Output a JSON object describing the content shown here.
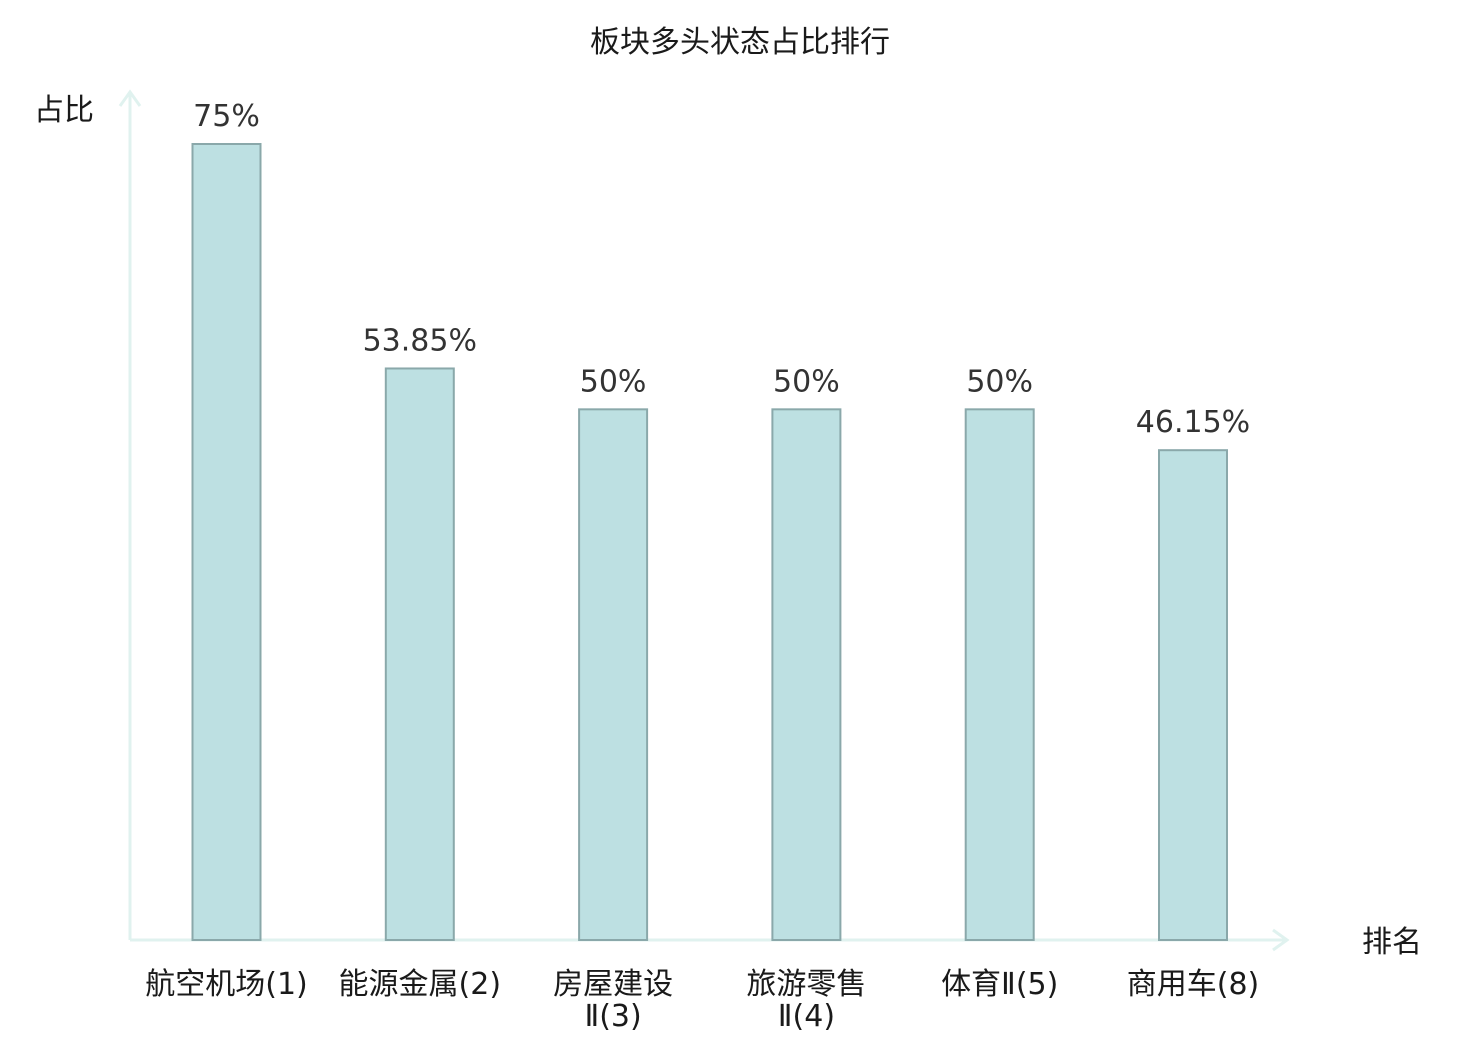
{
  "chart_data": {
    "type": "bar",
    "title": "板块多头状态占比排行",
    "ylabel": "占比",
    "xlabel": "排名",
    "ylim": [
      0,
      75
    ],
    "grid": false,
    "legend": "none",
    "categories": [
      [
        "航空机场(1)"
      ],
      [
        "能源金属(2)"
      ],
      [
        "房屋建设",
        "Ⅱ(3)"
      ],
      [
        "旅游零售",
        "Ⅱ(4)"
      ],
      [
        "体育Ⅱ(5)"
      ],
      [
        "商用车(8)"
      ]
    ],
    "values": [
      75,
      53.85,
      50,
      50,
      50,
      46.15
    ],
    "value_labels": [
      "75%",
      "53.85%",
      "50%",
      "50%",
      "50%",
      "46.15%"
    ],
    "highlight_index": 5,
    "colors": {
      "bar_fill": "#bde0e2",
      "bar_stroke": "#8aa8aa",
      "axis": "#e0f2ef",
      "highlight_text": "#e01010",
      "text": "#1a1a1a"
    }
  }
}
